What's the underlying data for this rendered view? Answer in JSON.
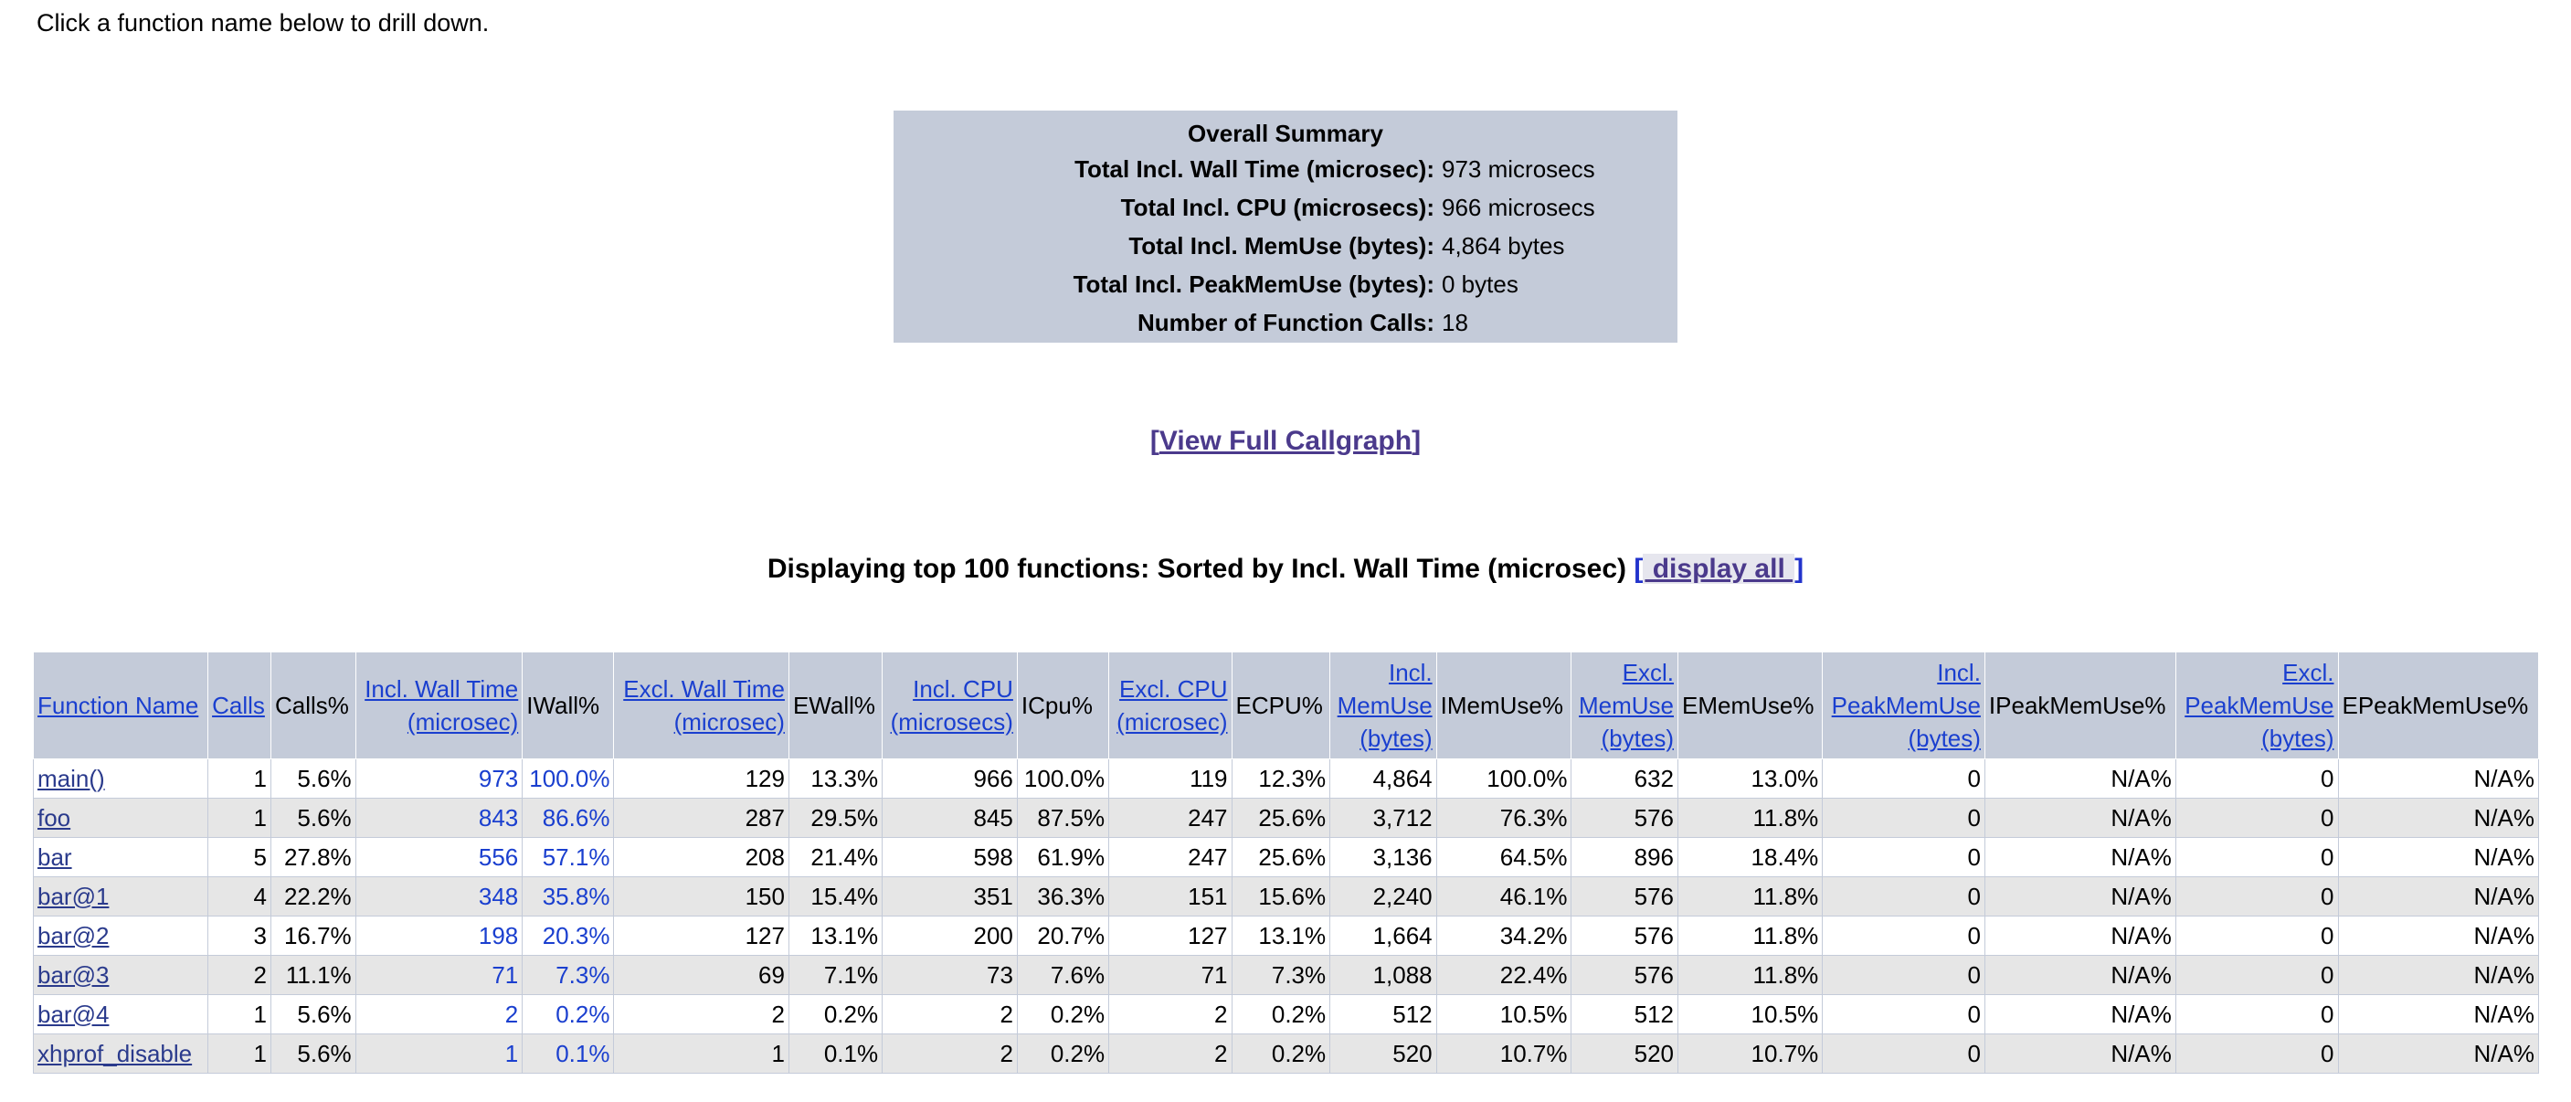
{
  "hint": "Click a function name below to drill down.",
  "summary": {
    "title": "Overall Summary",
    "rows": [
      {
        "label": "Total Incl. Wall Time (microsec):",
        "value": "973 microsecs"
      },
      {
        "label": "Total Incl. CPU (microsecs):",
        "value": "966 microsecs"
      },
      {
        "label": "Total Incl. MemUse (bytes):",
        "value": "4,864 bytes"
      },
      {
        "label": "Total Incl. PeakMemUse (bytes):",
        "value": "0 bytes"
      },
      {
        "label": "Number of Function Calls:",
        "value": "18"
      }
    ]
  },
  "callgraph": {
    "open": "[",
    "link": "View Full Callgraph",
    "close": "]"
  },
  "display": {
    "text": "Displaying top 100 functions: Sorted by Incl. Wall Time (microsec)",
    "open": "[",
    "link": " display all ",
    "close": "]"
  },
  "table": {
    "headers": [
      {
        "lines": [
          "Function Name"
        ],
        "link": true,
        "align": "left"
      },
      {
        "lines": [
          "Calls"
        ],
        "link": true,
        "align": "left"
      },
      {
        "lines": [
          "Calls%"
        ],
        "link": false,
        "align": "left"
      },
      {
        "lines": [
          "Incl. Wall Time",
          "(microsec)"
        ],
        "link": true
      },
      {
        "lines": [
          "IWall%"
        ],
        "link": false,
        "align": "left"
      },
      {
        "lines": [
          "Excl. Wall Time",
          "(microsec)"
        ],
        "link": true
      },
      {
        "lines": [
          "EWall%"
        ],
        "link": false,
        "align": "left"
      },
      {
        "lines": [
          "Incl. CPU",
          "(microsecs)"
        ],
        "link": true
      },
      {
        "lines": [
          "ICpu%"
        ],
        "link": false,
        "align": "left"
      },
      {
        "lines": [
          "Excl. CPU",
          "(microsec)"
        ],
        "link": true
      },
      {
        "lines": [
          "ECPU%"
        ],
        "link": false,
        "align": "left"
      },
      {
        "lines": [
          "Incl.",
          "MemUse",
          "(bytes)"
        ],
        "link": true
      },
      {
        "lines": [
          "IMemUse%"
        ],
        "link": false,
        "align": "left"
      },
      {
        "lines": [
          "Excl.",
          "MemUse",
          "(bytes)"
        ],
        "link": true
      },
      {
        "lines": [
          "EMemUse%"
        ],
        "link": false,
        "align": "left"
      },
      {
        "lines": [
          "Incl.",
          "PeakMemUse",
          "(bytes)"
        ],
        "link": true
      },
      {
        "lines": [
          "IPeakMemUse%"
        ],
        "link": false,
        "align": "left"
      },
      {
        "lines": [
          "Excl.",
          "PeakMemUse",
          "(bytes)"
        ],
        "link": true
      },
      {
        "lines": [
          "EPeakMemUse%"
        ],
        "link": false,
        "align": "left"
      }
    ],
    "rows": [
      [
        "main()",
        "1",
        "5.6%",
        "973",
        "100.0%",
        "129",
        "13.3%",
        "966",
        "100.0%",
        "119",
        "12.3%",
        "4,864",
        "100.0%",
        "632",
        "13.0%",
        "0",
        "N/A%",
        "0",
        "N/A%"
      ],
      [
        "foo",
        "1",
        "5.6%",
        "843",
        "86.6%",
        "287",
        "29.5%",
        "845",
        "87.5%",
        "247",
        "25.6%",
        "3,712",
        "76.3%",
        "576",
        "11.8%",
        "0",
        "N/A%",
        "0",
        "N/A%"
      ],
      [
        "bar",
        "5",
        "27.8%",
        "556",
        "57.1%",
        "208",
        "21.4%",
        "598",
        "61.9%",
        "247",
        "25.6%",
        "3,136",
        "64.5%",
        "896",
        "18.4%",
        "0",
        "N/A%",
        "0",
        "N/A%"
      ],
      [
        "bar@1",
        "4",
        "22.2%",
        "348",
        "35.8%",
        "150",
        "15.4%",
        "351",
        "36.3%",
        "151",
        "15.6%",
        "2,240",
        "46.1%",
        "576",
        "11.8%",
        "0",
        "N/A%",
        "0",
        "N/A%"
      ],
      [
        "bar@2",
        "3",
        "16.7%",
        "198",
        "20.3%",
        "127",
        "13.1%",
        "200",
        "20.7%",
        "127",
        "13.1%",
        "1,664",
        "34.2%",
        "576",
        "11.8%",
        "0",
        "N/A%",
        "0",
        "N/A%"
      ],
      [
        "bar@3",
        "2",
        "11.1%",
        "71",
        "7.3%",
        "69",
        "7.1%",
        "73",
        "7.6%",
        "71",
        "7.3%",
        "1,088",
        "22.4%",
        "576",
        "11.8%",
        "0",
        "N/A%",
        "0",
        "N/A%"
      ],
      [
        "bar@4",
        "1",
        "5.6%",
        "2",
        "0.2%",
        "2",
        "0.2%",
        "2",
        "0.2%",
        "2",
        "0.2%",
        "512",
        "10.5%",
        "512",
        "10.5%",
        "0",
        "N/A%",
        "0",
        "N/A%"
      ],
      [
        "xhprof_disable",
        "1",
        "5.6%",
        "1",
        "0.1%",
        "1",
        "0.1%",
        "2",
        "0.2%",
        "2",
        "0.2%",
        "520",
        "10.7%",
        "520",
        "10.7%",
        "0",
        "N/A%",
        "0",
        "N/A%"
      ]
    ]
  }
}
